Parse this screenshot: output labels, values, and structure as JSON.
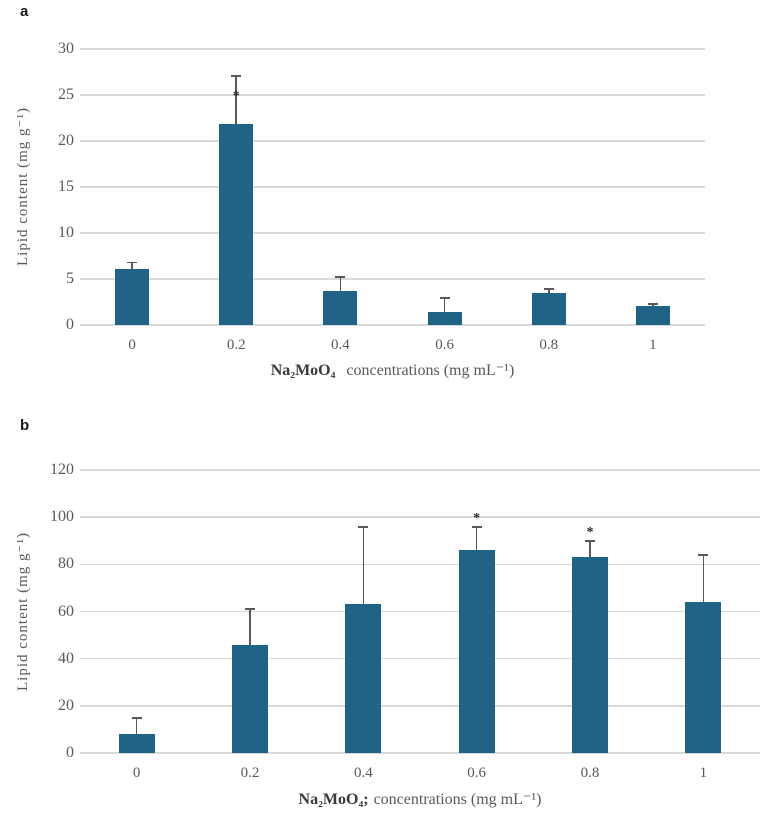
{
  "figure": {
    "background": "#ffffff"
  },
  "chart_data": [
    {
      "type": "bar",
      "panel_label": "a",
      "ylabel": "Lipid content (mg g⁻¹)",
      "xlabel_formula": "Na₂MoO₄",
      "xlabel_units": "concentrations (mg mL⁻¹)",
      "categories": [
        "0",
        "0.2",
        "0.4",
        "0.6",
        "0.8",
        "1"
      ],
      "values": [
        6.1,
        21.9,
        3.7,
        1.4,
        3.5,
        2.1
      ],
      "errors": [
        0.7,
        5.2,
        1.5,
        1.5,
        0.4,
        0.2
      ],
      "star_values": [
        null,
        25,
        null,
        null,
        null,
        null
      ],
      "ylim": [
        0,
        30
      ],
      "ytick_step": 5,
      "grid": true,
      "legend_position": "none",
      "bar_color": "#1f6486",
      "grid_color": "#d9d9d9",
      "error_color": "#595959",
      "tick_color": "#595959"
    },
    {
      "type": "bar",
      "panel_label": "b",
      "ylabel": "Lipid content (mg g⁻¹)",
      "xlabel_formula": "Na₂MoO₄;",
      "xlabel_units": "concentrations (mg mL⁻¹)",
      "categories": [
        "0",
        "0.2",
        "0.4",
        "0.6",
        "0.8",
        "1"
      ],
      "values": [
        8,
        46,
        63,
        86,
        83,
        64
      ],
      "errors": [
        7,
        15,
        33,
        10,
        7,
        20
      ],
      "star_values": [
        null,
        null,
        null,
        100,
        94,
        null
      ],
      "ylim": [
        0,
        120
      ],
      "ytick_step": 20,
      "grid": true,
      "legend_position": "none",
      "bar_color": "#1f6486",
      "grid_color": "#d9d9d9",
      "error_color": "#595959",
      "tick_color": "#595959"
    }
  ]
}
